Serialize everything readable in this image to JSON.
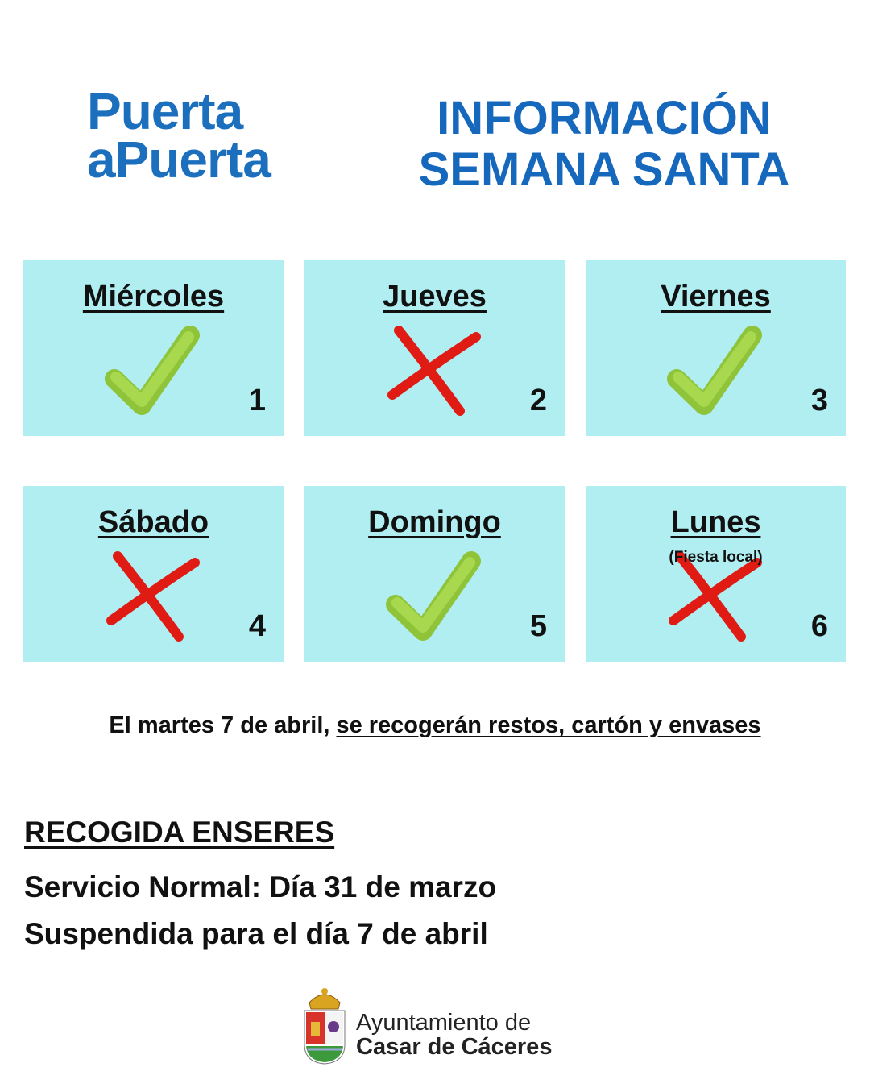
{
  "logo": {
    "line1": "Puerta",
    "line2": "aPuerta"
  },
  "header": {
    "title_line1": "INFORMACIÓN",
    "title_line2": "SEMANA SANTA"
  },
  "cards": [
    {
      "day": "Miércoles",
      "number": "1",
      "status": "check"
    },
    {
      "day": "Jueves",
      "number": "2",
      "status": "cross"
    },
    {
      "day": "Viernes",
      "number": "3",
      "status": "check"
    },
    {
      "day": "Sábado",
      "number": "4",
      "status": "cross"
    },
    {
      "day": "Domingo",
      "number": "5",
      "status": "check"
    },
    {
      "day": "Lunes",
      "note": "(Fiesta local)",
      "number": "6",
      "status": "cross"
    }
  ],
  "notice": {
    "lead": "El martes 7 de abril,",
    "highlight": "se recogerán restos, cartón y envases"
  },
  "enseres": {
    "heading": "RECOGIDA ENSERES",
    "lines": [
      "Servicio Normal: Día 31 de marzo",
      "Suspendida para el día 7 de abril"
    ]
  },
  "footer": {
    "line1": "Ayuntamiento de",
    "line2": "Casar de Cáceres"
  }
}
